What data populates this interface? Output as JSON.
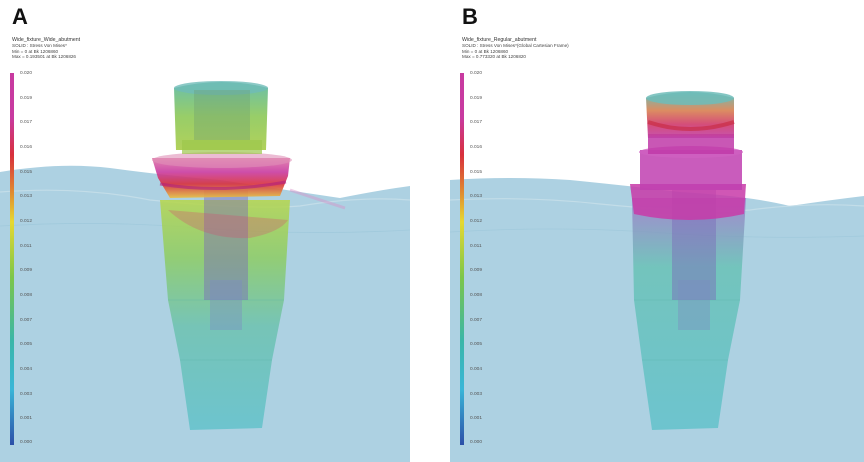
{
  "panels": [
    {
      "letter": "A",
      "title": "Wide_fixture_Wide_abutment",
      "line1": "SOLID : Stress Von Mises*",
      "line2": "Min = 0 at Bk 1206860",
      "line3": "Max = 0.193501 at Bk 1206826",
      "scale": [
        "0.020",
        "0.019",
        "0.017",
        "0.016",
        "0.015",
        "0.013",
        "0.012",
        "0.011",
        "0.009",
        "0.008",
        "0.007",
        "0.005",
        "0.004",
        "0.003",
        "0.001",
        "0.000"
      ]
    },
    {
      "letter": "B",
      "title": "Wide_fixture_Regular_abutment",
      "line1": "SOLID : Stress Von Mises*(Global Cartesian Frame)",
      "line2": "Min = 0 at Bk 1206860",
      "line3": "Max = 0.773320 at Bk 1206820",
      "scale": [
        "0.020",
        "0.019",
        "0.017",
        "0.016",
        "0.015",
        "0.013",
        "0.012",
        "0.011",
        "0.009",
        "0.008",
        "0.007",
        "0.005",
        "0.004",
        "0.003",
        "0.001",
        "0.000"
      ]
    }
  ],
  "colors": {
    "bone": "#a9cfe0",
    "scale_top": "#c83aa0",
    "scale_red": "#d8303c",
    "scale_yellow": "#e6d832",
    "scale_green": "#7cc64a",
    "scale_cyan": "#3ab6d8",
    "scale_bottom": "#2c4fa8"
  }
}
